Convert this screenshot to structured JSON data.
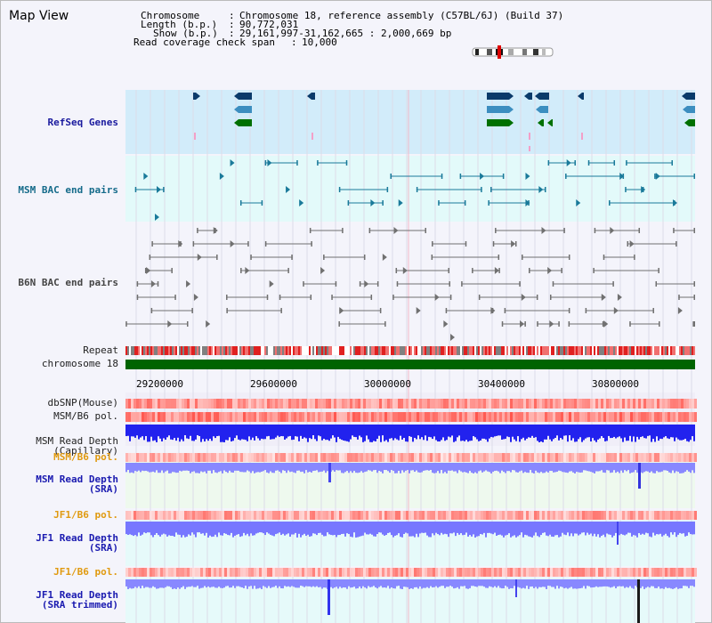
{
  "view_title": "Map View",
  "info": {
    "chromosome_label": "Chromosome",
    "chromosome_value": "Chromosome 18, reference assembly (C57BL/6J) (Build 37)",
    "length_label": "Length (b.p.)",
    "length_value": "90,772,031",
    "show_label": "Show (b.p.)",
    "show_value": "29,161,997-31,162,665 : 2,000,669 bp",
    "coverage_label": "Read coverage check span",
    "coverage_value": "10,000"
  },
  "tracks": {
    "refseq": "RefSeq Genes",
    "msm_bac": "MSM BAC end pairs",
    "b6n_bac": "B6N BAC end pairs",
    "repeat": "Repeat",
    "chromosome": "chromosome 18",
    "dbsnp": "dbSNP(Mouse)",
    "msm_b6_pol": "MSM/B6 pol.",
    "msm_depth_cap_1": "MSM Read Depth",
    "msm_depth_cap_2": "(Capillary)",
    "msm_b6_pol_2": "MSM/B6 pol.",
    "msm_depth_sra_1": "MSM Read Depth",
    "msm_depth_sra_2": "(SRA)",
    "jf1_pol_1": "JF1/B6 pol.",
    "jf1_depth_sra_1": "JF1 Read Depth",
    "jf1_depth_sra_2": "(SRA)",
    "jf1_pol_2": "JF1/B6 pol.",
    "jf1_depth_trim_1": "JF1 Read Depth",
    "jf1_depth_trim_2": "(SRA trimmed)"
  },
  "axis_ticks": [
    "29200000",
    "29600000",
    "30000000",
    "30400000",
    "30800000"
  ],
  "colors": {
    "refseq_bg": "#d2ecfa",
    "bac_bg": "#e3fafa",
    "gene_navy": "#0a3a6a",
    "gene_mid": "#3c8ec0",
    "gene_green": "#007000",
    "bac_teal": "#1a7a9a",
    "bac_gray": "#707070",
    "chrom_green": "#006400",
    "depth_blue": "#2222ee",
    "depth_light": "#8888ff"
  }
}
